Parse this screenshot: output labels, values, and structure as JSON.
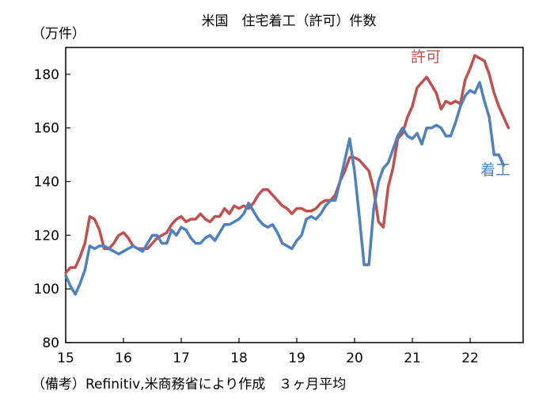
{
  "chart_data": {
    "type": "line",
    "title": "米国　住宅着工（許可）件数",
    "unit_label": "（万件）",
    "caption": "（備考）Refinitiv,米商務省により作成　３ヶ月平均",
    "xlabel": "",
    "ylabel": "",
    "ylim": [
      80,
      190
    ],
    "xlim": [
      2015,
      2022.917
    ],
    "y_ticks": [
      80,
      100,
      120,
      140,
      160,
      180
    ],
    "x_ticks": [
      {
        "value": 2015.0,
        "label": "15"
      },
      {
        "value": 2016.0,
        "label": "16"
      },
      {
        "value": 2017.0,
        "label": "17"
      },
      {
        "value": 2018.0,
        "label": "18"
      },
      {
        "value": 2019.0,
        "label": "19"
      },
      {
        "value": 2020.0,
        "label": "20"
      },
      {
        "value": 2021.0,
        "label": "21"
      },
      {
        "value": 2022.0,
        "label": "22"
      }
    ],
    "grid": false,
    "x_start": 2015.0,
    "x_step": 0.0833,
    "series": [
      {
        "name": "許可",
        "color": "#c0504d",
        "values": [
          106,
          108,
          108,
          112,
          117,
          127,
          126,
          122,
          115,
          115,
          117,
          120,
          121,
          119,
          116,
          115,
          115,
          115,
          117,
          119,
          120,
          121,
          124,
          126,
          127,
          125,
          126,
          126,
          128,
          126,
          125,
          127,
          127,
          130,
          128,
          131,
          130,
          131,
          130,
          132,
          135,
          137,
          137,
          135,
          133,
          131,
          130,
          128,
          130,
          130,
          129,
          129,
          130,
          132,
          133,
          133,
          135,
          140,
          144,
          149,
          149,
          148,
          146,
          144,
          137,
          125,
          123,
          138,
          145,
          156,
          158,
          164,
          168,
          175,
          177,
          179,
          176,
          173,
          167,
          170,
          169,
          170,
          169,
          178,
          182,
          187,
          186,
          185,
          180,
          173,
          168,
          164,
          160
        ]
      },
      {
        "name": "着工",
        "color": "#4f81bd",
        "values": [
          105,
          101,
          98,
          102,
          107,
          116,
          115,
          116,
          116,
          115,
          114,
          113,
          114,
          115,
          116,
          115,
          114,
          117,
          120,
          120,
          117,
          117,
          122,
          120,
          123,
          122,
          119,
          117,
          117,
          119,
          120,
          118,
          121,
          124,
          124,
          125,
          126,
          128,
          132,
          129,
          126,
          124,
          123,
          124,
          121,
          117,
          116,
          115,
          118,
          120,
          126,
          127,
          126,
          128,
          131,
          133,
          133,
          140,
          148,
          156,
          144,
          127,
          109,
          109,
          130,
          140,
          145,
          147,
          152,
          157,
          160,
          157,
          156,
          158,
          154,
          160,
          160,
          161,
          160,
          157,
          157,
          162,
          168,
          172,
          174,
          173,
          177,
          170,
          164,
          150,
          150,
          146
        ]
      }
    ]
  }
}
